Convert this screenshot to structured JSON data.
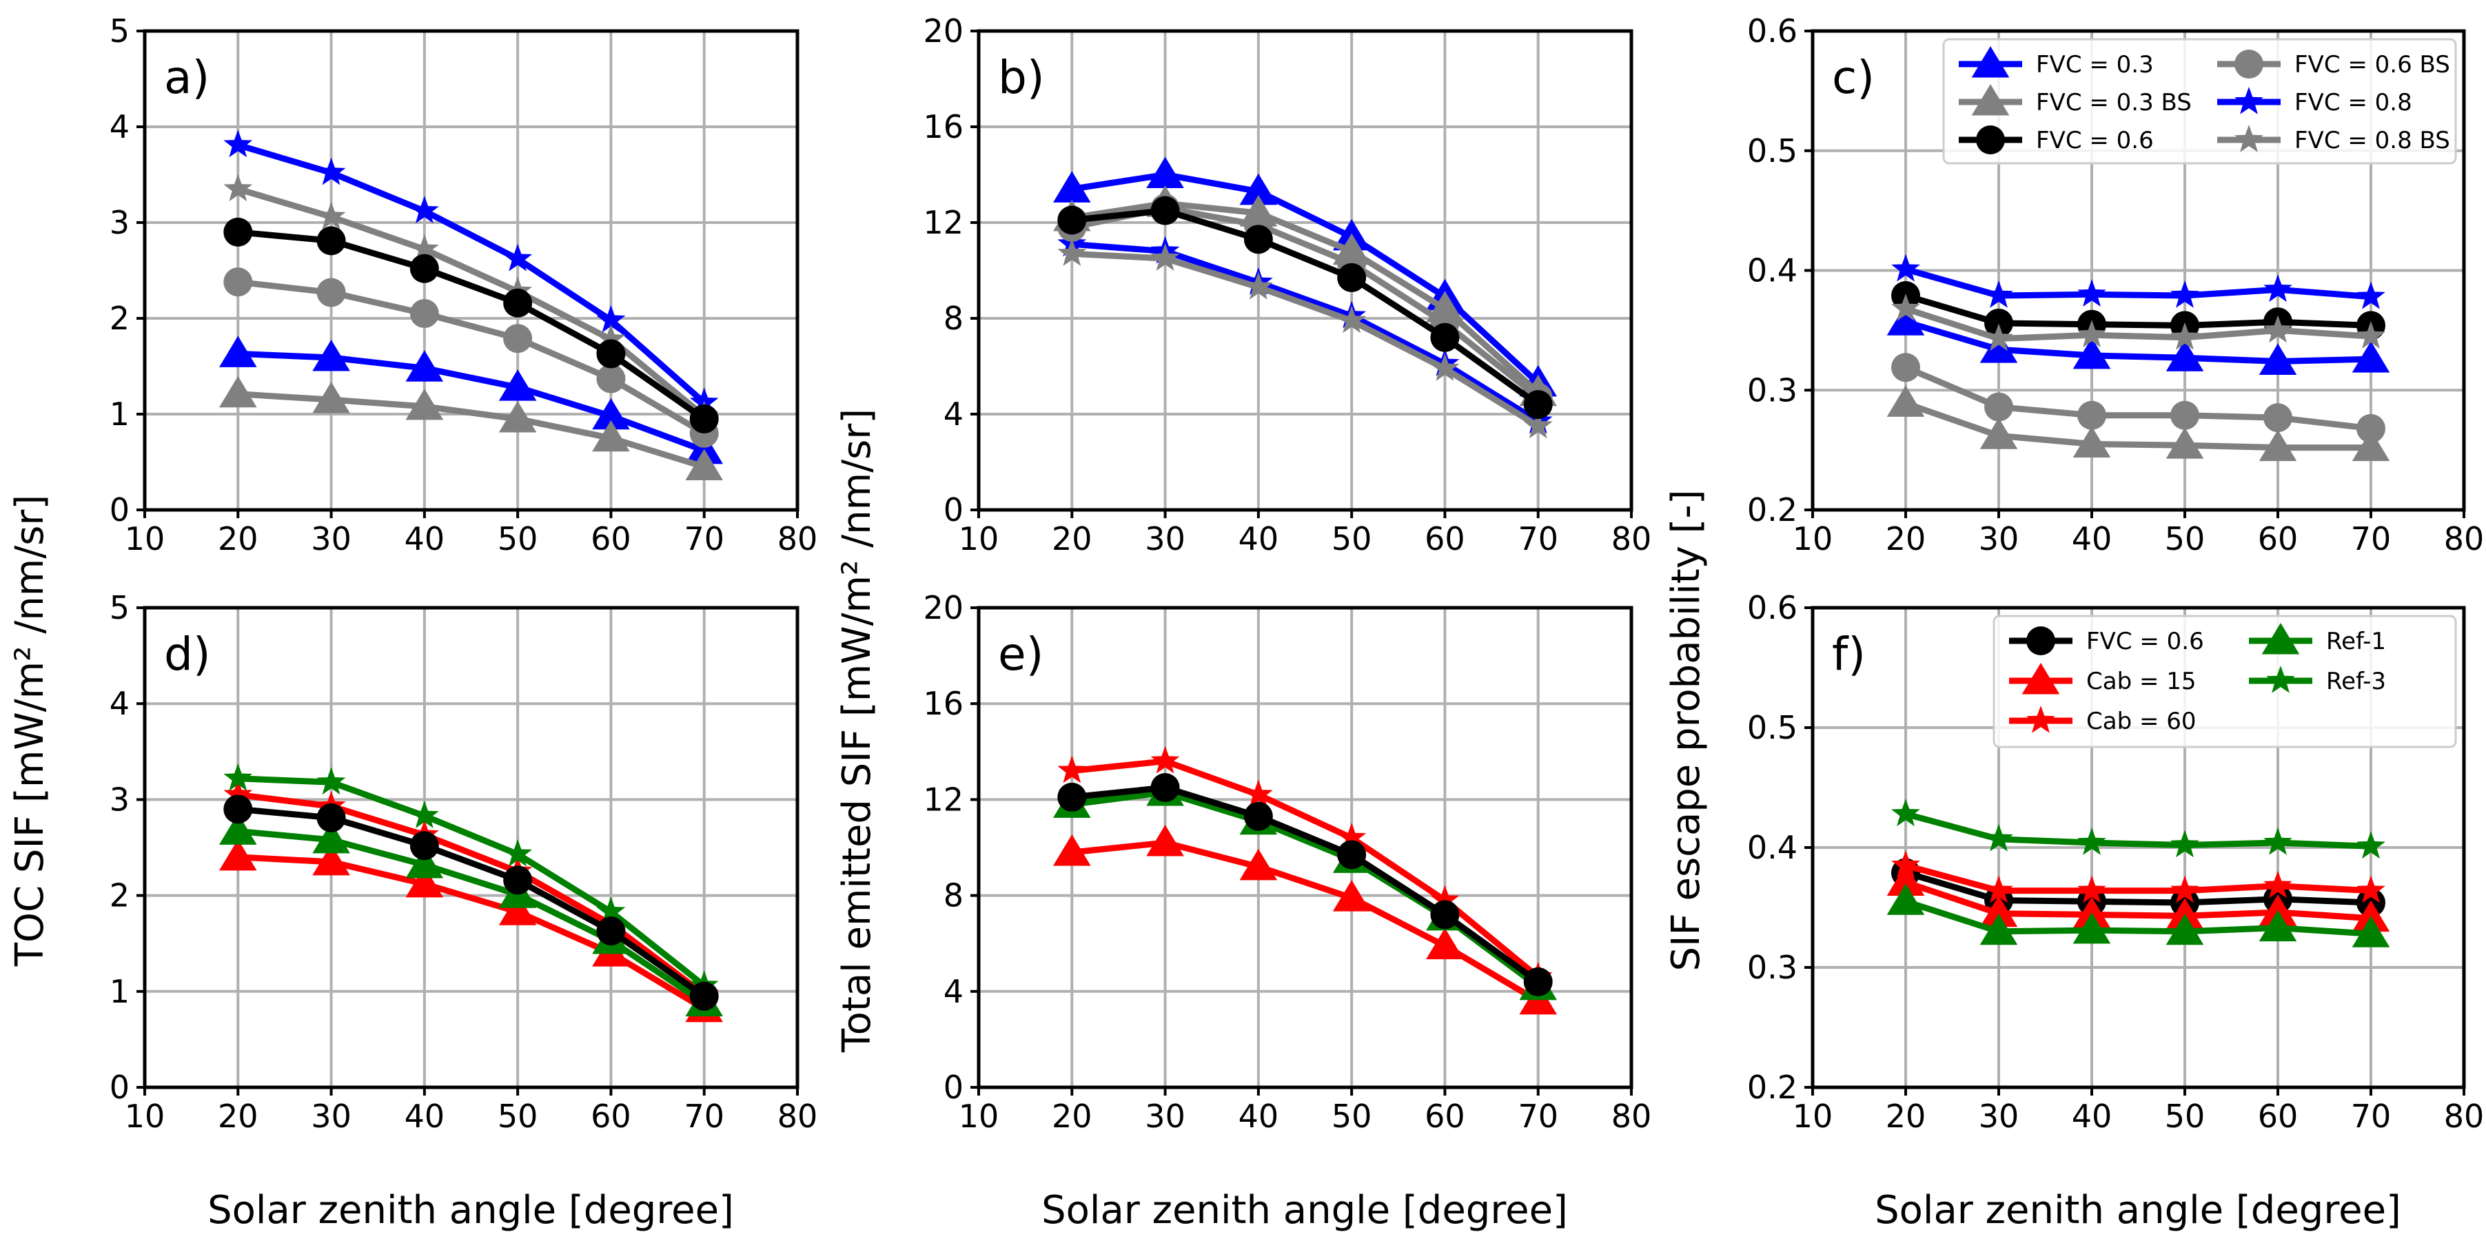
{
  "chart_data": [
    {
      "id": "a",
      "panel_label": "a)",
      "type": "line",
      "xlim": [
        10,
        80
      ],
      "ylim": [
        0,
        5
      ],
      "xticks": [
        "10",
        "20",
        "30",
        "40",
        "50",
        "60",
        "70",
        "80"
      ],
      "yticks": [
        "0",
        "1",
        "2",
        "3",
        "4",
        "5"
      ],
      "grid": true,
      "legend": null,
      "x": [
        20,
        30,
        40,
        50,
        60,
        70
      ],
      "series": [
        {
          "name": "FVC = 0.3",
          "marker": "triangle",
          "color": "#0000ff",
          "values": [
            1.63,
            1.59,
            1.48,
            1.28,
            0.98,
            0.62
          ]
        },
        {
          "name": "FVC = 0.3 BS",
          "marker": "triangle",
          "color": "#808080",
          "values": [
            1.21,
            1.15,
            1.08,
            0.95,
            0.75,
            0.45
          ]
        },
        {
          "name": "FVC = 0.8",
          "marker": "star",
          "color": "#0000ff",
          "values": [
            3.81,
            3.52,
            3.12,
            2.62,
            1.98,
            1.12
          ]
        },
        {
          "name": "FVC = 0.8 BS",
          "marker": "star",
          "color": "#808080",
          "values": [
            3.35,
            3.06,
            2.72,
            2.28,
            1.78,
            0.98
          ]
        },
        {
          "name": "FVC = 0.6 BS",
          "marker": "circle",
          "color": "#808080",
          "values": [
            2.38,
            2.27,
            2.05,
            1.79,
            1.37,
            0.8
          ]
        },
        {
          "name": "FVC = 0.6",
          "marker": "circle",
          "color": "#000000",
          "values": [
            2.9,
            2.81,
            2.52,
            2.16,
            1.63,
            0.95
          ]
        }
      ]
    },
    {
      "id": "b",
      "panel_label": "b)",
      "type": "line",
      "xlim": [
        10,
        80
      ],
      "ylim": [
        0,
        20
      ],
      "xticks": [
        "10",
        "20",
        "30",
        "40",
        "50",
        "60",
        "70",
        "80"
      ],
      "yticks": [
        "0",
        "4",
        "8",
        "12",
        "16",
        "20"
      ],
      "grid": true,
      "legend": null,
      "x": [
        20,
        30,
        40,
        50,
        60,
        70
      ],
      "series": [
        {
          "name": "FVC = 0.3",
          "marker": "triangle",
          "color": "#0000ff",
          "values": [
            13.4,
            14.0,
            13.3,
            11.4,
            8.9,
            5.3
          ]
        },
        {
          "name": "FVC = 0.3 BS",
          "marker": "triangle",
          "color": "#808080",
          "values": [
            12.2,
            12.8,
            12.4,
            10.8,
            8.4,
            4.9
          ]
        },
        {
          "name": "FVC = 0.8",
          "marker": "star",
          "color": "#0000ff",
          "values": [
            11.1,
            10.8,
            9.5,
            8.1,
            6.1,
            3.7
          ]
        },
        {
          "name": "FVC = 0.8 BS",
          "marker": "star",
          "color": "#808080",
          "values": [
            10.7,
            10.5,
            9.3,
            7.9,
            5.9,
            3.5
          ]
        },
        {
          "name": "FVC = 0.6 BS",
          "marker": "circle",
          "color": "#808080",
          "values": [
            11.8,
            12.6,
            11.9,
            10.3,
            7.8,
            4.7
          ]
        },
        {
          "name": "FVC = 0.6",
          "marker": "circle",
          "color": "#000000",
          "values": [
            12.1,
            12.5,
            11.3,
            9.7,
            7.2,
            4.4
          ]
        }
      ]
    },
    {
      "id": "c",
      "panel_label": "c)",
      "type": "line",
      "xlim": [
        10,
        80
      ],
      "ylim": [
        0.2,
        0.6
      ],
      "xticks": [
        "10",
        "20",
        "30",
        "40",
        "50",
        "60",
        "70",
        "80"
      ],
      "yticks": [
        "0.2",
        "0.3",
        "0.4",
        "0.5",
        "0.6"
      ],
      "grid": true,
      "legend": "top-right",
      "x": [
        20,
        30,
        40,
        50,
        60,
        70
      ],
      "series": [
        {
          "name": "FVC = 0.3",
          "marker": "triangle",
          "color": "#0000ff",
          "values": [
            0.357,
            0.334,
            0.329,
            0.327,
            0.324,
            0.326
          ]
        },
        {
          "name": "FVC = 0.3 BS",
          "marker": "triangle",
          "color": "#808080",
          "values": [
            0.289,
            0.262,
            0.255,
            0.254,
            0.252,
            0.252
          ]
        },
        {
          "name": "FVC = 0.6",
          "marker": "circle",
          "color": "#000000",
          "values": [
            0.379,
            0.356,
            0.355,
            0.354,
            0.357,
            0.354
          ]
        },
        {
          "name": "FVC = 0.6 BS",
          "marker": "circle",
          "color": "#808080",
          "values": [
            0.319,
            0.286,
            0.279,
            0.279,
            0.277,
            0.268
          ]
        },
        {
          "name": "FVC = 0.8",
          "marker": "star",
          "color": "#0000ff",
          "values": [
            0.401,
            0.379,
            0.38,
            0.379,
            0.384,
            0.378
          ]
        },
        {
          "name": "FVC = 0.8 BS",
          "marker": "star",
          "color": "#808080",
          "values": [
            0.368,
            0.343,
            0.346,
            0.344,
            0.35,
            0.345
          ]
        }
      ]
    },
    {
      "id": "d",
      "panel_label": "d)",
      "type": "line",
      "xlim": [
        10,
        80
      ],
      "ylim": [
        0,
        5
      ],
      "xticks": [
        "10",
        "20",
        "30",
        "40",
        "50",
        "60",
        "70",
        "80"
      ],
      "yticks": [
        "0",
        "1",
        "2",
        "3",
        "4",
        "5"
      ],
      "grid": true,
      "legend": null,
      "x": [
        20,
        30,
        40,
        50,
        60,
        70
      ],
      "series": [
        {
          "name": "Cab = 15",
          "marker": "triangle",
          "color": "#ff0000",
          "values": [
            2.4,
            2.35,
            2.12,
            1.83,
            1.4,
            0.82
          ]
        },
        {
          "name": "Cab = 60",
          "marker": "star",
          "color": "#ff0000",
          "values": [
            3.05,
            2.93,
            2.63,
            2.25,
            1.7,
            0.97
          ]
        },
        {
          "name": "Ref-1",
          "marker": "triangle",
          "color": "#008000",
          "values": [
            2.67,
            2.58,
            2.32,
            2.01,
            1.53,
            0.88
          ]
        },
        {
          "name": "Ref-3",
          "marker": "star",
          "color": "#008000",
          "values": [
            3.22,
            3.18,
            2.83,
            2.43,
            1.83,
            1.06
          ]
        },
        {
          "name": "FVC = 0.6",
          "marker": "circle",
          "color": "#000000",
          "values": [
            2.9,
            2.81,
            2.52,
            2.16,
            1.63,
            0.95
          ]
        }
      ]
    },
    {
      "id": "e",
      "panel_label": "e)",
      "type": "line",
      "xlim": [
        10,
        80
      ],
      "ylim": [
        0,
        20
      ],
      "xticks": [
        "10",
        "20",
        "30",
        "40",
        "50",
        "60",
        "70",
        "80"
      ],
      "yticks": [
        "0",
        "4",
        "8",
        "12",
        "16",
        "20"
      ],
      "grid": true,
      "legend": null,
      "x": [
        20,
        30,
        40,
        50,
        60,
        70
      ],
      "series": [
        {
          "name": "Cab = 15",
          "marker": "triangle",
          "color": "#ff0000",
          "values": [
            9.8,
            10.2,
            9.2,
            7.9,
            5.9,
            3.6
          ]
        },
        {
          "name": "Cab = 60",
          "marker": "star",
          "color": "#ff0000",
          "values": [
            13.2,
            13.6,
            12.2,
            10.4,
            7.8,
            4.6
          ]
        },
        {
          "name": "Ref-1",
          "marker": "triangle",
          "color": "#008000",
          "values": [
            11.8,
            12.3,
            11.1,
            9.5,
            7.1,
            4.2
          ]
        },
        {
          "name": "Ref-3",
          "marker": "star",
          "color": "#008000",
          "values": [
            12.0,
            12.4,
            11.2,
            9.6,
            7.2,
            4.3
          ]
        },
        {
          "name": "FVC = 0.6",
          "marker": "circle",
          "color": "#000000",
          "values": [
            12.1,
            12.5,
            11.3,
            9.7,
            7.2,
            4.4
          ]
        }
      ]
    },
    {
      "id": "f",
      "panel_label": "f)",
      "type": "line",
      "xlim": [
        10,
        80
      ],
      "ylim": [
        0.2,
        0.6
      ],
      "xticks": [
        "10",
        "20",
        "30",
        "40",
        "50",
        "60",
        "70",
        "80"
      ],
      "yticks": [
        "0.2",
        "0.3",
        "0.4",
        "0.5",
        "0.6"
      ],
      "grid": true,
      "legend": "top-right",
      "x": [
        20,
        30,
        40,
        50,
        60,
        70
      ],
      "series": [
        {
          "name": "FVC = 0.6",
          "marker": "circle",
          "color": "#000000",
          "values": [
            0.379,
            0.356,
            0.355,
            0.354,
            0.357,
            0.354
          ]
        },
        {
          "name": "Cab = 15",
          "marker": "triangle",
          "color": "#ff0000",
          "values": [
            0.371,
            0.345,
            0.344,
            0.343,
            0.346,
            0.341
          ]
        },
        {
          "name": "Cab = 60",
          "marker": "star",
          "color": "#ff0000",
          "values": [
            0.385,
            0.364,
            0.364,
            0.364,
            0.368,
            0.364
          ]
        },
        {
          "name": "Ref-1",
          "marker": "triangle",
          "color": "#008000",
          "values": [
            0.355,
            0.33,
            0.331,
            0.33,
            0.333,
            0.328
          ]
        },
        {
          "name": "Ref-3",
          "marker": "star",
          "color": "#008000",
          "values": [
            0.428,
            0.407,
            0.404,
            0.402,
            0.404,
            0.401
          ]
        }
      ]
    }
  ],
  "axis_labels": {
    "x": "Solar zenith angle [degree]",
    "y_a": "TOC SIF [mW/m² /nm/sr]",
    "y_b": "Total emitted SIF [mW/m² /nm/sr]",
    "y_c": "SIF escape probability [-]"
  },
  "legend_c": {
    "items": [
      "FVC = 0.3",
      "FVC = 0.6 BS",
      "FVC = 0.3 BS",
      "FVC = 0.8",
      "FVC = 0.6",
      "FVC = 0.8 BS"
    ]
  },
  "legend_f": {
    "items": [
      "FVC = 0.6",
      "Ref-1",
      "Cab = 15",
      "Ref-3",
      "Cab = 60"
    ]
  }
}
